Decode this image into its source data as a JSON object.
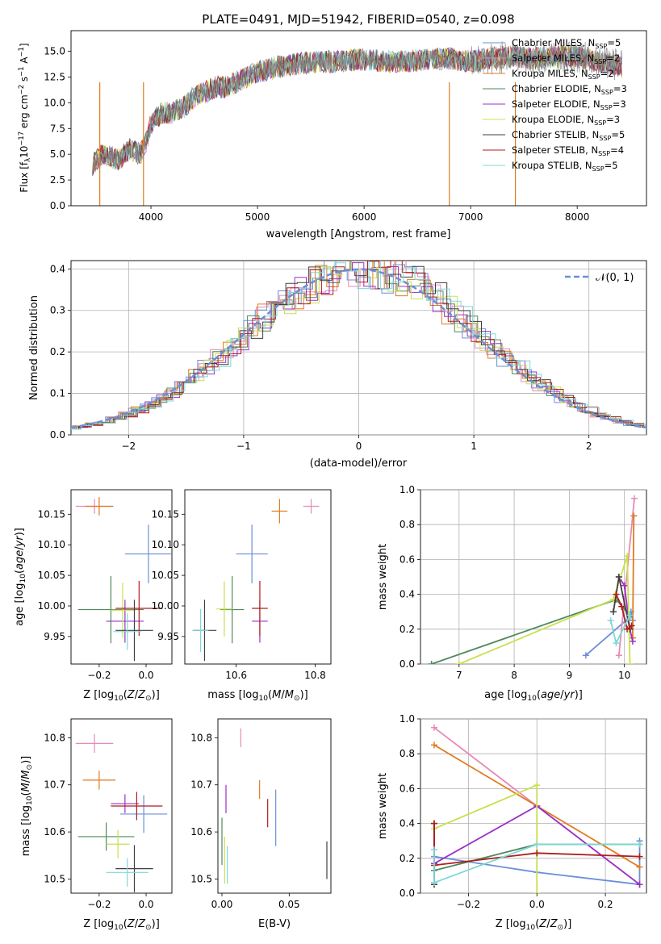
{
  "chart_data": [
    {
      "type": "line",
      "title": "PLATE=0491, MJD=51942, FIBERID=0540, z=0.098",
      "xlabel": "wavelength [Angstrom, rest frame]",
      "ylabel": "Flux [f_λ10^-17 erg cm^-2 s^-1 A^-1]",
      "xlim": [
        3250,
        8650
      ],
      "ylim": [
        0,
        17
      ],
      "xticks": [
        4000,
        5000,
        6000,
        7000,
        8000
      ],
      "yticks": [
        0.0,
        2.5,
        5.0,
        7.5,
        10.0,
        12.5,
        15.0
      ],
      "grid": false,
      "legend_placement": "right",
      "spectrum_observed": {
        "range": [
          3450,
          8420
        ],
        "points": [
          [
            3450,
            4
          ],
          [
            3550,
            5
          ],
          [
            3700,
            4.5
          ],
          [
            3800,
            5.5
          ],
          [
            3900,
            5
          ],
          [
            3950,
            6
          ],
          [
            4000,
            8
          ],
          [
            4100,
            9
          ],
          [
            4200,
            9
          ],
          [
            4300,
            9.5
          ],
          [
            4400,
            10.5
          ],
          [
            4500,
            11
          ],
          [
            4600,
            11.5
          ],
          [
            4700,
            11.5
          ],
          [
            4800,
            12
          ],
          [
            4900,
            12.5
          ],
          [
            5000,
            13
          ],
          [
            5100,
            13.2
          ],
          [
            5200,
            13.5
          ],
          [
            5400,
            13.8
          ],
          [
            5600,
            14
          ],
          [
            5800,
            14
          ],
          [
            6000,
            14.2
          ],
          [
            6200,
            14
          ],
          [
            6400,
            14
          ],
          [
            6600,
            14.2
          ],
          [
            6800,
            14.3
          ],
          [
            7000,
            14
          ],
          [
            7200,
            14.3
          ],
          [
            7400,
            14.5
          ],
          [
            7600,
            14.3
          ],
          [
            7800,
            14.5
          ],
          [
            8000,
            14.5
          ],
          [
            8200,
            14
          ],
          [
            8420,
            13.5
          ]
        ],
        "spikes": [
          [
            3520,
            0
          ],
          [
            3930,
            0
          ],
          [
            6800,
            0
          ],
          [
            7420,
            0
          ]
        ]
      },
      "legend": [
        {
          "label": "Chabrier MILES, N_SSP=5",
          "color": "#6a8fd7"
        },
        {
          "label": "Salpeter MILES, N_SSP=2",
          "color": "#e68ab8"
        },
        {
          "label": "Kroupa MILES, N_SSP=2",
          "color": "#e07b1f"
        },
        {
          "label": "Chabrier ELODIE, N_SSP=3",
          "color": "#4f8a5d"
        },
        {
          "label": "Salpeter ELODIE, N_SSP=3",
          "color": "#9b30c8"
        },
        {
          "label": "Kroupa ELODIE, N_SSP=3",
          "color": "#c8e04e"
        },
        {
          "label": "Chabrier STELIB, N_SSP=5",
          "color": "#3f3f3f"
        },
        {
          "label": "Salpeter STELIB, N_SSP=4",
          "color": "#b01c1c"
        },
        {
          "label": "Kroupa STELIB, N_SSP=5",
          "color": "#7fd7d7"
        }
      ]
    },
    {
      "type": "line",
      "xlabel": "(data-model)/error",
      "ylabel": "Normed distribution",
      "xlim": [
        -2.5,
        2.5
      ],
      "ylim": [
        0,
        0.42
      ],
      "xticks": [
        -2,
        -1,
        0,
        1,
        2
      ],
      "yticks": [
        0.0,
        0.1,
        0.2,
        0.3,
        0.4
      ],
      "grid": true,
      "legend": [
        {
          "label": "N(0,1)",
          "color": "#6a8fd7",
          "style": "dashed"
        }
      ],
      "legend_placement": "top-right",
      "histogram_bin_width": 0.1,
      "histogram_colors": [
        "#6a8fd7",
        "#e68ab8",
        "#e07b1f",
        "#4f8a5d",
        "#9b30c8",
        "#c8e04e",
        "#3f3f3f",
        "#b01c1c",
        "#7fd7d7"
      ]
    },
    {
      "type": "scatter",
      "xlabel": "Z [log10(Z/Z⊙)]",
      "ylabel": "age [log10(age/yr)]",
      "xlim": [
        -0.32,
        0.11
      ],
      "ylim": [
        9.905,
        10.19
      ],
      "xticks": [
        -0.2,
        0.0
      ],
      "yticks": [
        9.95,
        10.0,
        10.05,
        10.1,
        10.15
      ],
      "points": [
        {
          "x": -0.22,
          "y": 10.163,
          "xerr": 0.08,
          "yerr": 0.012,
          "color": "#e68ab8"
        },
        {
          "x": -0.2,
          "y": 10.163,
          "xerr": 0.06,
          "yerr": 0.015,
          "color": "#e07b1f"
        },
        {
          "x": 0.01,
          "y": 10.085,
          "xerr": 0.1,
          "yerr": 0.048,
          "color": "#6a8fd7"
        },
        {
          "x": -0.15,
          "y": 9.994,
          "xerr": 0.14,
          "yerr": 0.055,
          "color": "#4f8a5d"
        },
        {
          "x": -0.09,
          "y": 9.975,
          "xerr": 0.08,
          "yerr": 0.035,
          "color": "#9b30c8"
        },
        {
          "x": -0.1,
          "y": 9.993,
          "xerr": 0.05,
          "yerr": 0.045,
          "color": "#c8e04e"
        },
        {
          "x": -0.05,
          "y": 9.96,
          "xerr": 0.08,
          "yerr": 0.05,
          "color": "#3f3f3f"
        },
        {
          "x": -0.03,
          "y": 9.996,
          "xerr": 0.1,
          "yerr": 0.045,
          "color": "#b01c1c"
        },
        {
          "x": -0.08,
          "y": 9.958,
          "xerr": 0.06,
          "yerr": 0.03,
          "color": "#7fd7d7"
        }
      ]
    },
    {
      "type": "scatter",
      "xlabel": "mass [log10(M/M⊙)]",
      "ylabel": "",
      "xlim": [
        10.47,
        10.84
      ],
      "ylim": [
        9.905,
        10.19
      ],
      "xticks": [
        10.6,
        10.8
      ],
      "yticks": [
        9.95,
        10.0,
        10.05,
        10.1,
        10.15
      ],
      "points": [
        {
          "x": 10.79,
          "y": 10.163,
          "xerr": 0.02,
          "yerr": 0.012,
          "color": "#e68ab8"
        },
        {
          "x": 10.71,
          "y": 10.155,
          "xerr": 0.02,
          "yerr": 0.02,
          "color": "#e07b1f"
        },
        {
          "x": 10.64,
          "y": 10.085,
          "xerr": 0.04,
          "yerr": 0.048,
          "color": "#6a8fd7"
        },
        {
          "x": 10.59,
          "y": 9.994,
          "xerr": 0.03,
          "yerr": 0.055,
          "color": "#4f8a5d"
        },
        {
          "x": 10.66,
          "y": 9.975,
          "xerr": 0.02,
          "yerr": 0.035,
          "color": "#9b30c8"
        },
        {
          "x": 10.57,
          "y": 9.995,
          "xerr": 0.02,
          "yerr": 0.045,
          "color": "#c8e04e"
        },
        {
          "x": 10.52,
          "y": 9.96,
          "xerr": 0.03,
          "yerr": 0.05,
          "color": "#3f3f3f"
        },
        {
          "x": 10.66,
          "y": 9.996,
          "xerr": 0.02,
          "yerr": 0.045,
          "color": "#b01c1c"
        },
        {
          "x": 10.51,
          "y": 9.96,
          "xerr": 0.02,
          "yerr": 0.035,
          "color": "#7fd7d7"
        }
      ]
    },
    {
      "type": "line",
      "xlabel": "age [log10(age/yr)]",
      "ylabel": "mass weight",
      "xlim": [
        6.3,
        10.4
      ],
      "ylim": [
        0,
        1.0
      ],
      "xticks": [
        7,
        8,
        9,
        10
      ],
      "yticks": [
        0.0,
        0.2,
        0.4,
        0.6,
        0.8,
        1.0
      ],
      "grid": true,
      "series": [
        {
          "color": "#6a8fd7",
          "x": [
            9.3,
            10.1,
            10.12,
            10.15
          ],
          "y": [
            0.05,
            0.27,
            0.3,
            0.25
          ]
        },
        {
          "color": "#e68ab8",
          "x": [
            9.9,
            10.18
          ],
          "y": [
            0.05,
            0.95
          ]
        },
        {
          "color": "#e07b1f",
          "x": [
            10.15,
            10.17
          ],
          "y": [
            0.15,
            0.85
          ]
        },
        {
          "color": "#4f8a5d",
          "x": [
            6.5,
            9.85,
            10.1
          ],
          "y": [
            0.0,
            0.37,
            0.28
          ]
        },
        {
          "color": "#9b30c8",
          "x": [
            9.9,
            10.0,
            10.1,
            10.15
          ],
          "y": [
            0.5,
            0.45,
            0.2,
            0.13
          ]
        },
        {
          "color": "#c8e04e",
          "x": [
            7.0,
            9.8,
            10.05,
            10.1
          ],
          "y": [
            0.0,
            0.37,
            0.62,
            0.0
          ]
        },
        {
          "color": "#3f3f3f",
          "x": [
            9.8,
            9.9,
            10.1
          ],
          "y": [
            0.3,
            0.5,
            0.2
          ]
        },
        {
          "color": "#b01c1c",
          "x": [
            9.85,
            9.95,
            10.05,
            10.13
          ],
          "y": [
            0.4,
            0.33,
            0.2,
            0.22
          ]
        },
        {
          "color": "#7fd7d7",
          "x": [
            9.75,
            9.85,
            10.1
          ],
          "y": [
            0.25,
            0.12,
            0.28
          ]
        }
      ]
    },
    {
      "type": "scatter",
      "xlabel": "Z [log10(Z/Z⊙)]",
      "ylabel": "mass [log10(M/M⊙)]",
      "xlim": [
        -0.32,
        0.11
      ],
      "ylim": [
        10.47,
        10.84
      ],
      "xticks": [
        -0.2,
        0.0
      ],
      "yticks": [
        10.5,
        10.6,
        10.7,
        10.8
      ],
      "points": [
        {
          "x": -0.22,
          "y": 10.788,
          "xerr": 0.08,
          "yerr": 0.02,
          "color": "#e68ab8"
        },
        {
          "x": -0.2,
          "y": 10.71,
          "xerr": 0.07,
          "yerr": 0.02,
          "color": "#e07b1f"
        },
        {
          "x": -0.01,
          "y": 10.638,
          "xerr": 0.1,
          "yerr": 0.04,
          "color": "#6a8fd7"
        },
        {
          "x": -0.17,
          "y": 10.59,
          "xerr": 0.12,
          "yerr": 0.03,
          "color": "#4f8a5d"
        },
        {
          "x": -0.09,
          "y": 10.66,
          "xerr": 0.06,
          "yerr": 0.02,
          "color": "#9b30c8"
        },
        {
          "x": -0.12,
          "y": 10.574,
          "xerr": 0.05,
          "yerr": 0.03,
          "color": "#c8e04e"
        },
        {
          "x": -0.05,
          "y": 10.522,
          "xerr": 0.08,
          "yerr": 0.05,
          "color": "#3f3f3f"
        },
        {
          "x": -0.04,
          "y": 10.655,
          "xerr": 0.11,
          "yerr": 0.03,
          "color": "#b01c1c"
        },
        {
          "x": -0.08,
          "y": 10.514,
          "xerr": 0.09,
          "yerr": 0.03,
          "color": "#7fd7d7"
        }
      ]
    },
    {
      "type": "scatter",
      "xlabel": "E(B-V)",
      "ylabel": "",
      "xlim": [
        -0.003,
        0.081
      ],
      "ylim": [
        10.47,
        10.84
      ],
      "xticks": [
        0.0,
        0.05
      ],
      "yticks": [
        10.5,
        10.6,
        10.7,
        10.8
      ],
      "points": [
        {
          "x": 0.014,
          "y": 10.8,
          "yerr": 0.02,
          "color": "#e68ab8"
        },
        {
          "x": 0.028,
          "y": 10.69,
          "yerr": 0.02,
          "color": "#e07b1f"
        },
        {
          "x": 0.04,
          "y": 10.63,
          "yerr": 0.06,
          "color": "#6a8fd7"
        },
        {
          "x": 0.0,
          "y": 10.58,
          "yerr": 0.05,
          "color": "#4f8a5d"
        },
        {
          "x": 0.003,
          "y": 10.67,
          "yerr": 0.03,
          "color": "#9b30c8"
        },
        {
          "x": 0.002,
          "y": 10.54,
          "yerr": 0.05,
          "color": "#c8e04e"
        },
        {
          "x": 0.078,
          "y": 10.54,
          "yerr": 0.04,
          "color": "#3f3f3f"
        },
        {
          "x": 0.034,
          "y": 10.64,
          "yerr": 0.03,
          "color": "#b01c1c"
        },
        {
          "x": 0.004,
          "y": 10.53,
          "yerr": 0.04,
          "color": "#7fd7d7"
        }
      ]
    },
    {
      "type": "line",
      "xlabel": "Z [log10(Z/Z⊙)]",
      "ylabel": "mass weight",
      "xlim": [
        -0.34,
        0.32
      ],
      "ylim": [
        0,
        1.0
      ],
      "xticks": [
        -0.2,
        0.0,
        0.2
      ],
      "yticks": [
        0.0,
        0.2,
        0.4,
        0.6,
        0.8,
        1.0
      ],
      "grid": true,
      "series": [
        {
          "color": "#6a8fd7",
          "x": [
            -0.3,
            0.0,
            0.3,
            0.3
          ],
          "y": [
            0.21,
            0.12,
            0.05,
            0.3
          ]
        },
        {
          "color": "#e68ab8",
          "x": [
            -0.3,
            0.0,
            0.3
          ],
          "y": [
            0.95,
            0.5,
            0.05
          ]
        },
        {
          "color": "#e07b1f",
          "x": [
            -0.3,
            0.3
          ],
          "y": [
            0.85,
            0.15
          ]
        },
        {
          "color": "#4f8a5d",
          "x": [
            -0.3,
            0.0,
            0.3
          ],
          "y": [
            0.13,
            0.28,
            0.28
          ]
        },
        {
          "color": "#9b30c8",
          "x": [
            -0.3,
            0.0,
            0.3
          ],
          "y": [
            0.17,
            0.5,
            0.05
          ]
        },
        {
          "color": "#c8e04e",
          "x": [
            -0.3,
            0.0,
            0.0
          ],
          "y": [
            0.37,
            0.62,
            0.0
          ]
        },
        {
          "color": "#3f3f3f",
          "x": [
            -0.3,
            -0.3
          ],
          "y": [
            0.05,
            0.4
          ]
        },
        {
          "color": "#b01c1c",
          "x": [
            -0.3,
            -0.3,
            0.0,
            0.3
          ],
          "y": [
            0.4,
            0.16,
            0.23,
            0.21
          ]
        },
        {
          "color": "#7fd7d7",
          "x": [
            -0.3,
            -0.3,
            0.0,
            0.3
          ],
          "y": [
            0.25,
            0.06,
            0.28,
            0.28
          ]
        }
      ]
    }
  ]
}
